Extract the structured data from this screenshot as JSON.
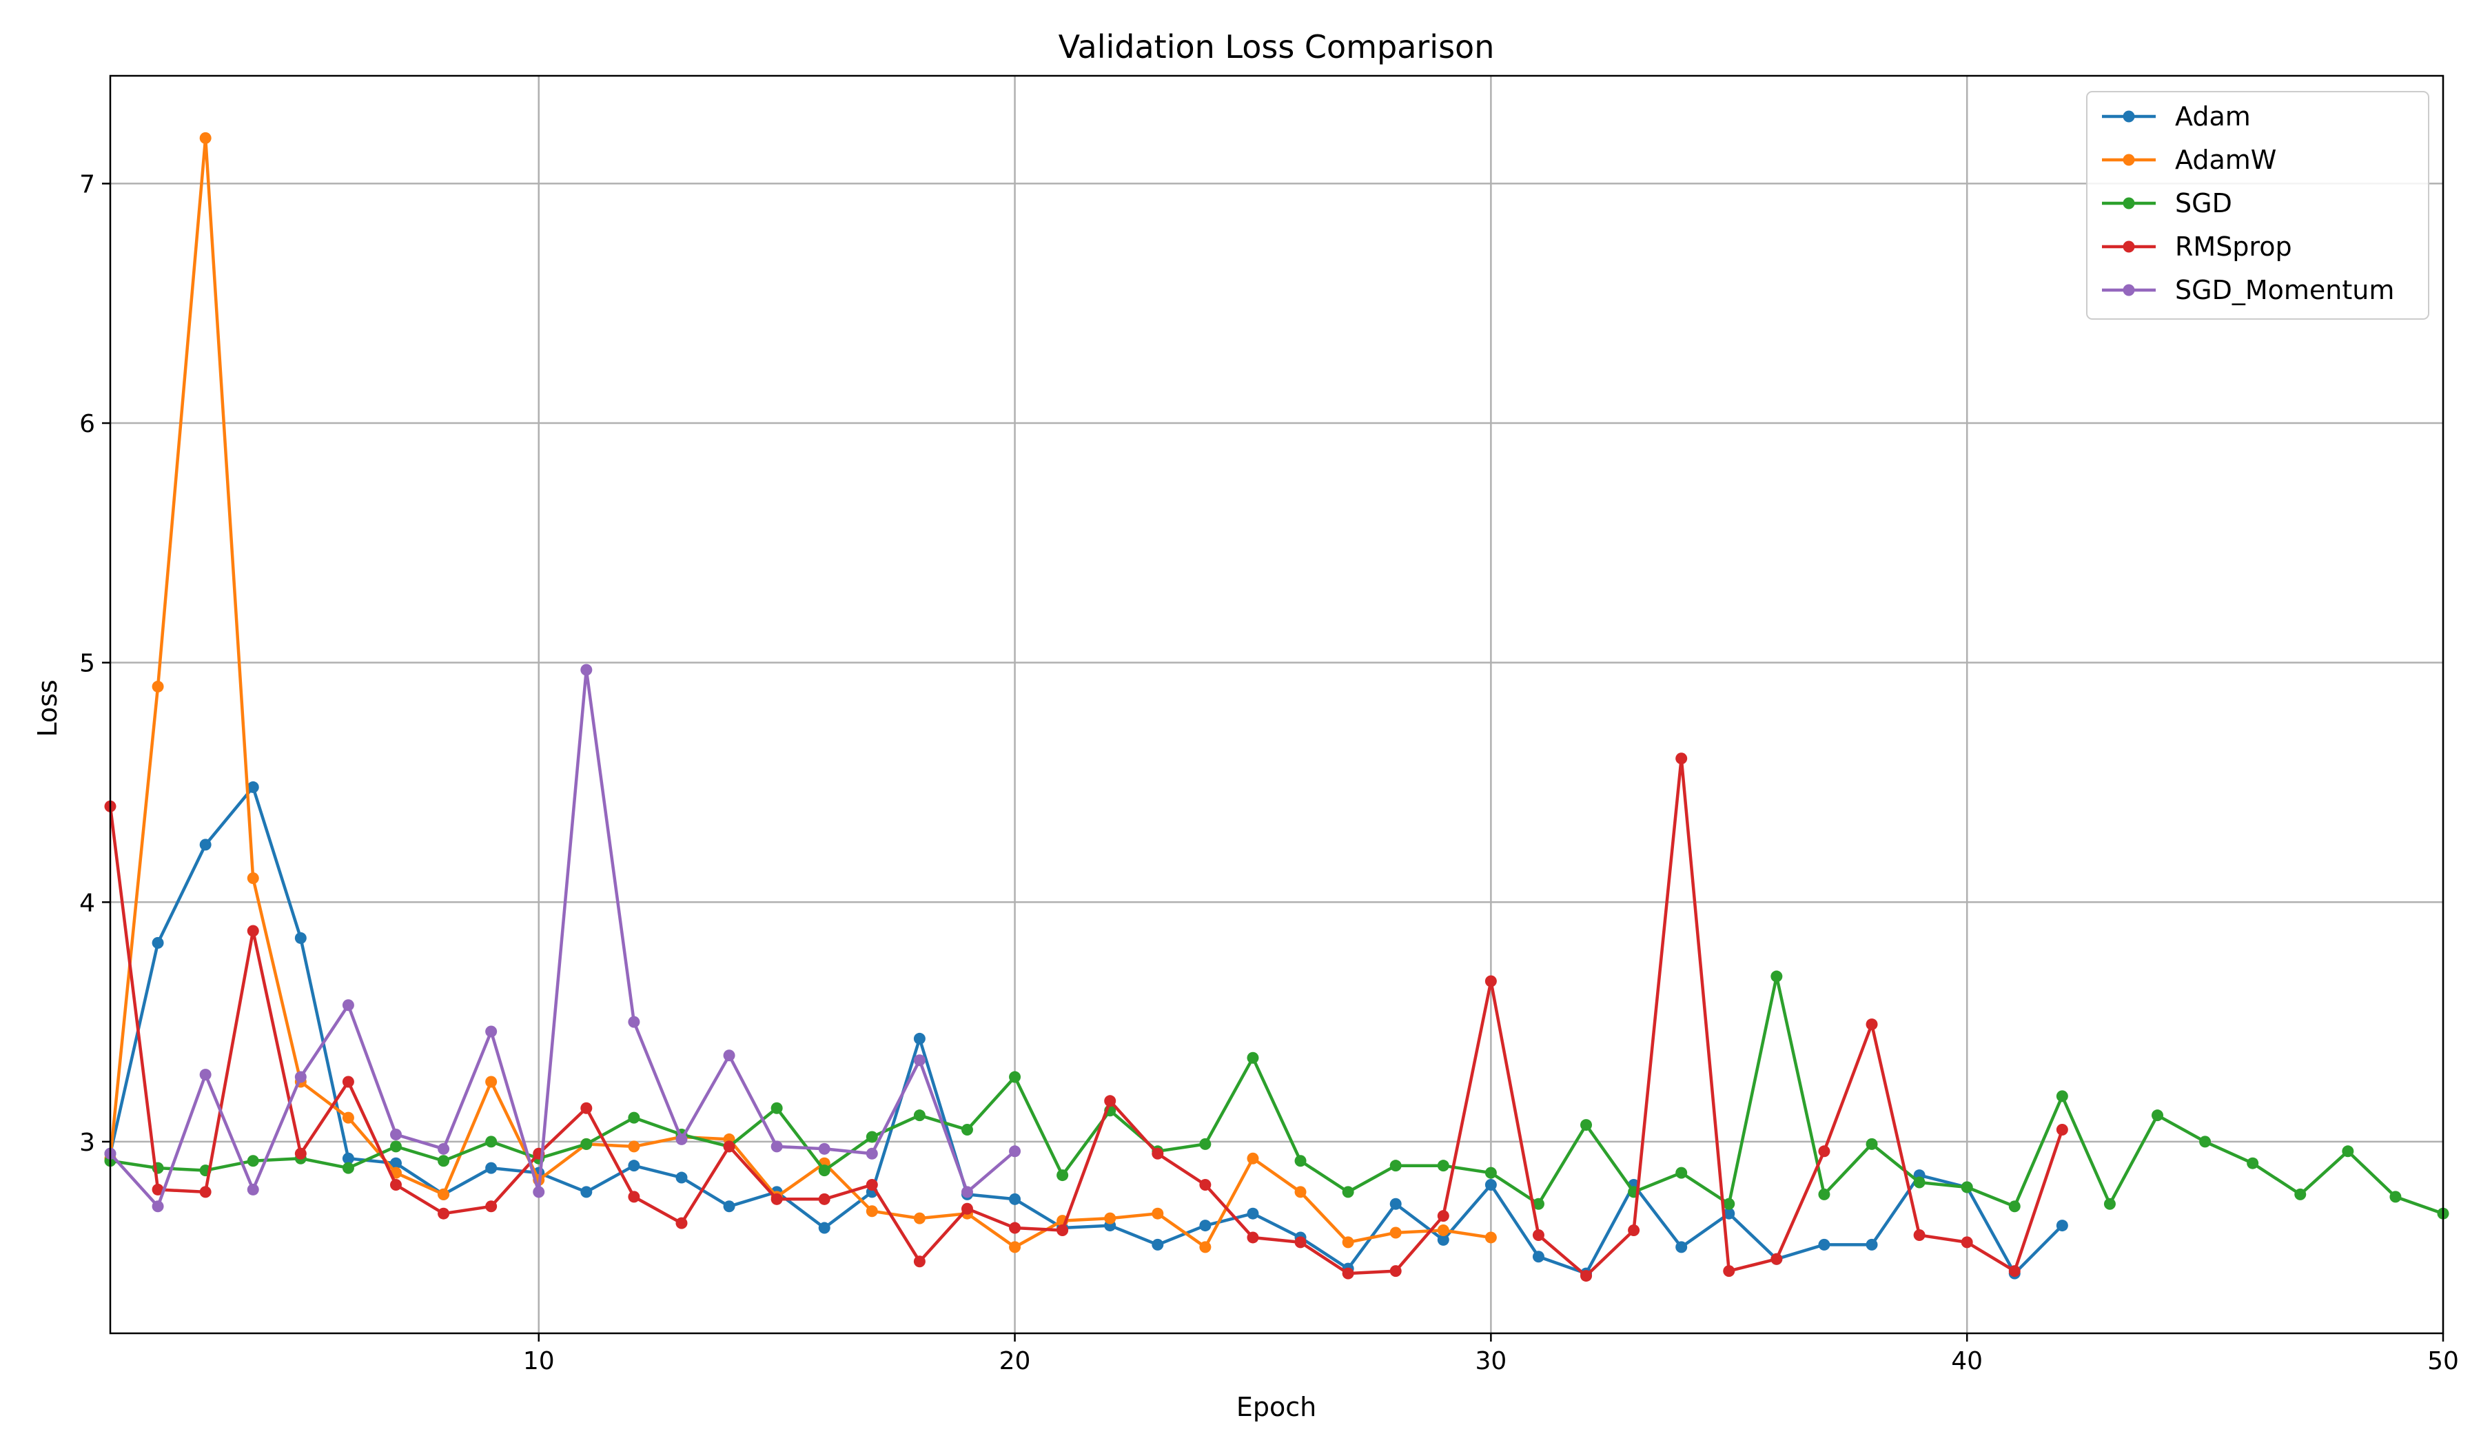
{
  "chart_data": {
    "type": "line",
    "title": "Validation Loss Comparison",
    "xlabel": "Epoch",
    "ylabel": "Loss",
    "xlim": [
      1,
      50
    ],
    "ylim": [
      2.2,
      7.45
    ],
    "xticks": [
      10,
      20,
      30,
      40,
      50
    ],
    "yticks": [
      3,
      4,
      5,
      6,
      7
    ],
    "grid": true,
    "legend_position": "top-right",
    "series": [
      {
        "name": "Adam",
        "color": "#1f77b4",
        "x": [
          1,
          2,
          3,
          4,
          5,
          6,
          7,
          8,
          9,
          10,
          11,
          12,
          13,
          14,
          15,
          16,
          17,
          18,
          19,
          20,
          21,
          22,
          23,
          24,
          25,
          26,
          27,
          28,
          29,
          30,
          31,
          32,
          33,
          34,
          35,
          36,
          37,
          38,
          39,
          40,
          41,
          42
        ],
        "values": [
          2.95,
          3.83,
          4.24,
          4.48,
          3.85,
          2.93,
          2.91,
          2.78,
          2.89,
          2.87,
          2.79,
          2.9,
          2.85,
          2.73,
          2.79,
          2.64,
          2.79,
          3.43,
          2.78,
          2.76,
          2.64,
          2.65,
          2.57,
          2.65,
          2.7,
          2.6,
          2.47,
          2.74,
          2.59,
          2.82,
          2.52,
          2.45,
          2.82,
          2.56,
          2.7,
          2.51,
          2.57,
          2.57,
          2.86,
          2.81,
          2.45,
          2.65
        ]
      },
      {
        "name": "AdamW",
        "color": "#ff7f0e",
        "x": [
          1,
          2,
          3,
          4,
          5,
          6,
          7,
          8,
          9,
          10,
          11,
          12,
          13,
          14,
          15,
          16,
          17,
          18,
          19,
          20,
          21,
          22,
          23,
          24,
          25,
          26,
          27,
          28,
          29,
          30
        ],
        "values": [
          2.93,
          4.9,
          7.19,
          4.1,
          3.25,
          3.1,
          2.87,
          2.78,
          3.25,
          2.84,
          2.99,
          2.98,
          3.02,
          3.01,
          2.77,
          2.91,
          2.71,
          2.68,
          2.7,
          2.56,
          2.67,
          2.68,
          2.7,
          2.56,
          2.93,
          2.79,
          2.58,
          2.62,
          2.63,
          2.6
        ]
      },
      {
        "name": "SGD",
        "color": "#2ca02c",
        "x": [
          1,
          2,
          3,
          4,
          5,
          6,
          7,
          8,
          9,
          10,
          11,
          12,
          13,
          14,
          15,
          16,
          17,
          18,
          19,
          20,
          21,
          22,
          23,
          24,
          25,
          26,
          27,
          28,
          29,
          30,
          31,
          32,
          33,
          34,
          35,
          36,
          37,
          38,
          39,
          40,
          41,
          42,
          43,
          44,
          45,
          46,
          47,
          48,
          49,
          50
        ],
        "values": [
          2.92,
          2.89,
          2.88,
          2.92,
          2.93,
          2.89,
          2.98,
          2.92,
          3.0,
          2.93,
          2.99,
          3.1,
          3.03,
          2.98,
          3.14,
          2.88,
          3.02,
          3.11,
          3.05,
          3.27,
          2.86,
          3.13,
          2.96,
          2.99,
          3.35,
          2.92,
          2.79,
          2.9,
          2.9,
          2.87,
          2.74,
          3.07,
          2.79,
          2.87,
          2.74,
          3.69,
          2.78,
          2.99,
          2.83,
          2.81,
          2.73,
          3.19,
          2.74,
          3.11,
          3.0,
          2.91,
          2.78,
          2.96,
          2.77,
          2.7
        ]
      },
      {
        "name": "RMSprop",
        "color": "#d62728",
        "x": [
          1,
          2,
          3,
          4,
          5,
          6,
          7,
          8,
          9,
          10,
          11,
          12,
          13,
          14,
          15,
          16,
          17,
          18,
          19,
          20,
          21,
          22,
          23,
          24,
          25,
          26,
          27,
          28,
          29,
          30,
          31,
          32,
          33,
          34,
          35,
          36,
          37,
          38,
          39,
          40,
          41,
          42
        ],
        "values": [
          4.4,
          2.8,
          2.79,
          3.88,
          2.95,
          3.25,
          2.82,
          2.7,
          2.73,
          2.95,
          3.14,
          2.77,
          2.66,
          2.98,
          2.76,
          2.76,
          2.82,
          2.5,
          2.72,
          2.64,
          2.63,
          3.17,
          2.95,
          2.82,
          2.6,
          2.58,
          2.45,
          2.46,
          2.69,
          3.67,
          2.61,
          2.44,
          2.63,
          4.6,
          2.46,
          2.51,
          2.96,
          3.49,
          2.61,
          2.58,
          2.46,
          3.05
        ]
      },
      {
        "name": "SGD_Momentum",
        "color": "#9467bd",
        "x": [
          1,
          2,
          3,
          4,
          5,
          6,
          7,
          8,
          9,
          10,
          11,
          12,
          13,
          14,
          15,
          16,
          17,
          18,
          19,
          20
        ],
        "values": [
          2.95,
          2.73,
          3.28,
          2.8,
          3.27,
          3.57,
          3.03,
          2.97,
          3.46,
          2.79,
          4.97,
          3.5,
          3.01,
          3.36,
          2.98,
          2.97,
          2.95,
          3.34,
          2.79,
          2.96
        ]
      }
    ]
  }
}
